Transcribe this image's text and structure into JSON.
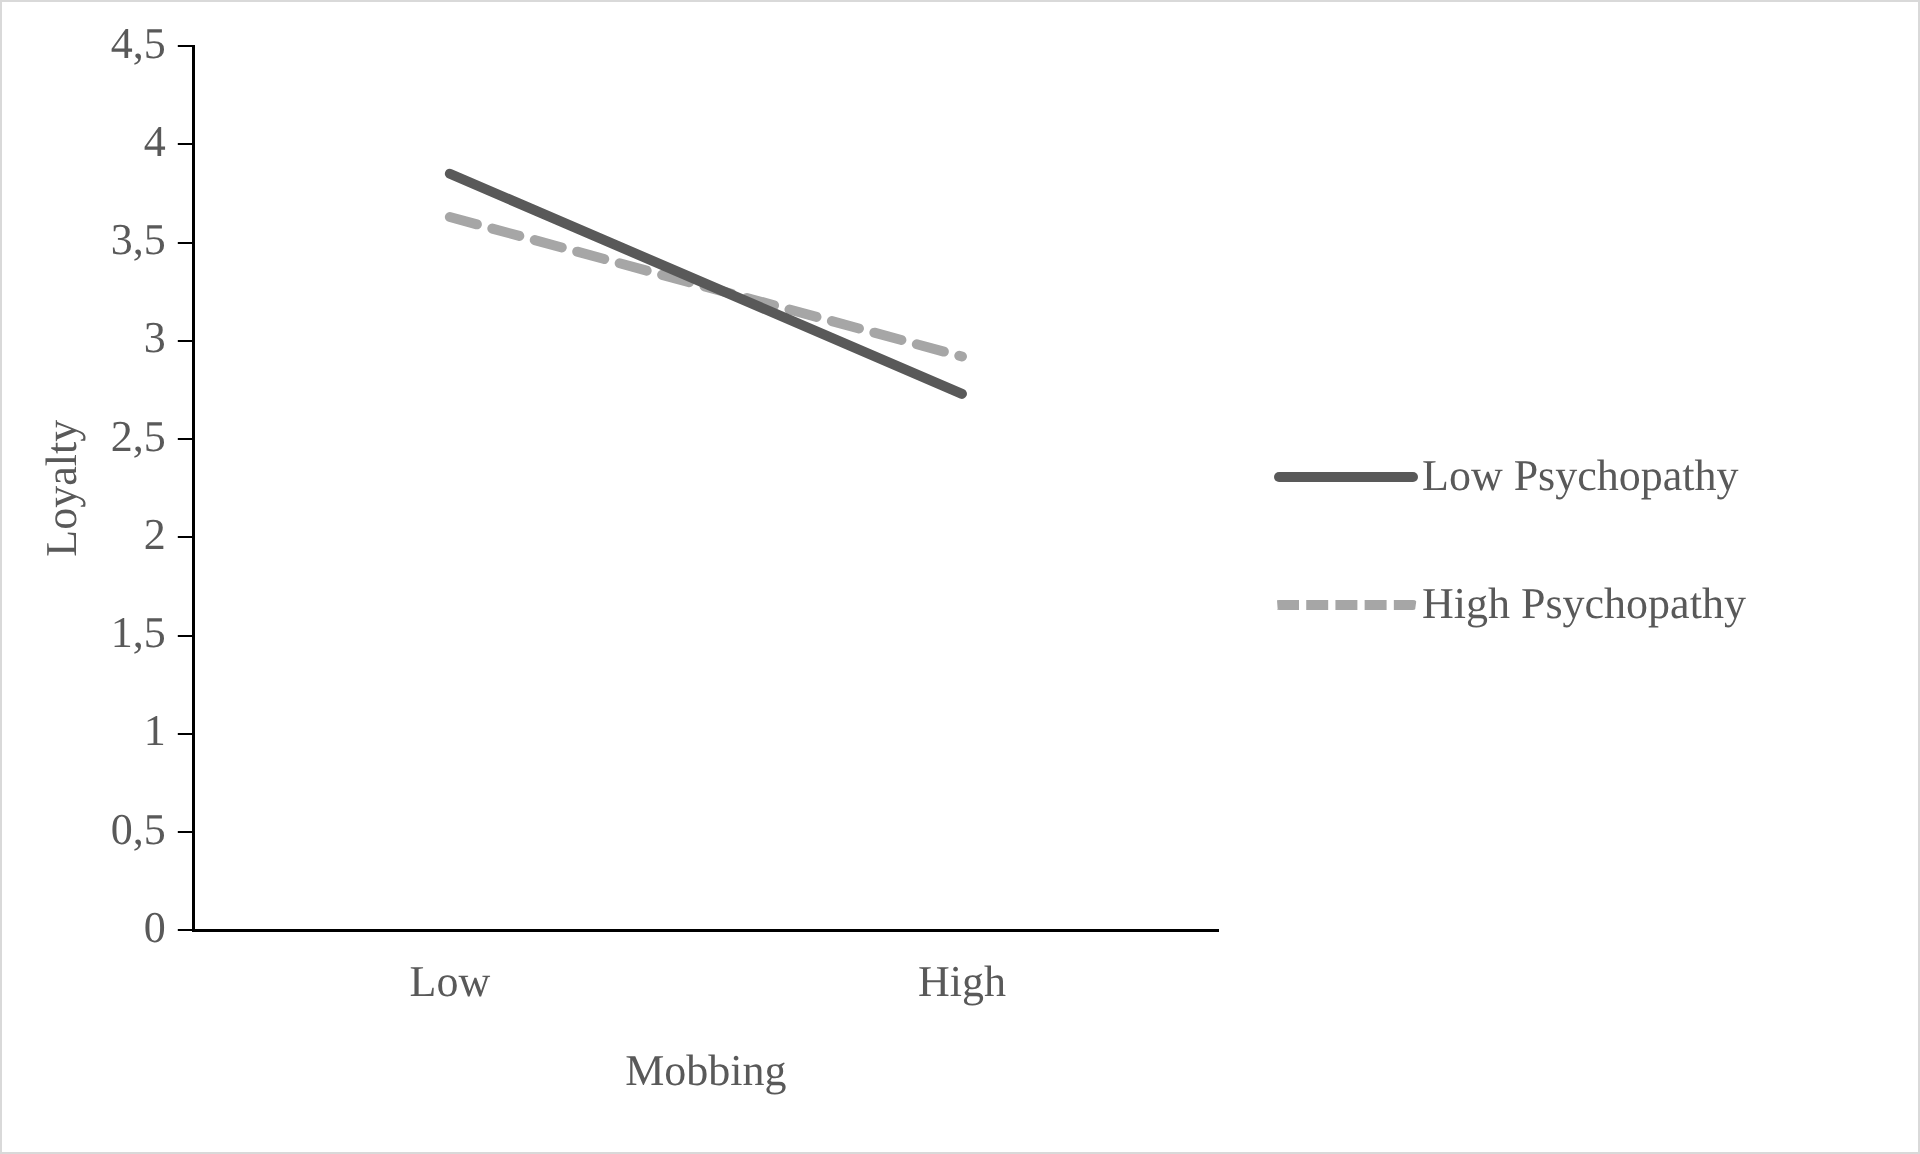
{
  "chart_data": {
    "type": "line",
    "xlabel": "Mobbing",
    "ylabel": "Loyalty",
    "categories": [
      "Low",
      "High"
    ],
    "series": [
      {
        "name": "Low Psychopathy",
        "color": "#595959",
        "line_style": "solid",
        "values": [
          3.85,
          2.73
        ]
      },
      {
        "name": "High Psychopathy",
        "color": "#a6a6a6",
        "line_style": "dashed",
        "values": [
          3.63,
          2.92
        ]
      }
    ],
    "ylim": [
      0,
      4.5
    ],
    "yticks": [
      {
        "value": 0,
        "label": "0"
      },
      {
        "value": 0.5,
        "label": "0,5"
      },
      {
        "value": 1,
        "label": "1"
      },
      {
        "value": 1.5,
        "label": "1,5"
      },
      {
        "value": 2,
        "label": "2"
      },
      {
        "value": 2.5,
        "label": "2,5"
      },
      {
        "value": 3,
        "label": "3"
      },
      {
        "value": 3.5,
        "label": "3,5"
      },
      {
        "value": 4,
        "label": "4"
      },
      {
        "value": 4.5,
        "label": "4,5"
      }
    ],
    "grid": false,
    "legend": "right",
    "marker": "none"
  }
}
